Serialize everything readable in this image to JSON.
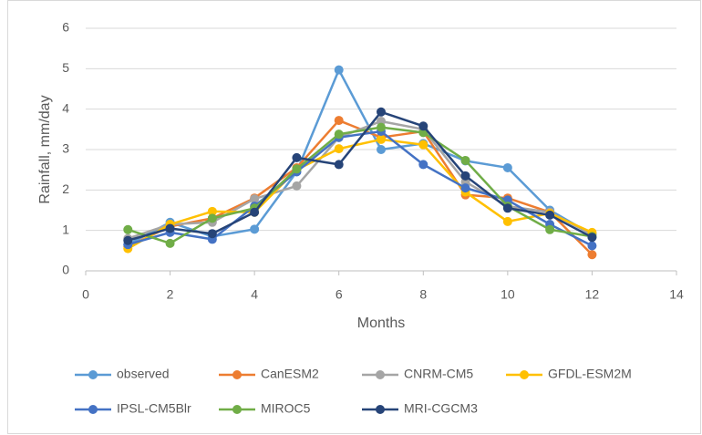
{
  "chart_data": {
    "type": "line",
    "x_label": "Months",
    "y_label": "Rainfall, mm/day",
    "x": [
      1,
      2,
      3,
      4,
      5,
      6,
      7,
      8,
      9,
      10,
      11,
      12
    ],
    "xlim": [
      0,
      14
    ],
    "xticks": [
      0,
      2,
      4,
      6,
      8,
      10,
      12,
      14
    ],
    "ylim": [
      0,
      6
    ],
    "yticks": [
      0,
      1,
      2,
      3,
      4,
      5,
      6
    ],
    "grid": true,
    "legend": "bottom",
    "series": [
      {
        "name": "observed",
        "color": "#5b9bd5",
        "values": [
          0.65,
          1.2,
          0.85,
          1.03,
          2.45,
          4.97,
          3.0,
          3.15,
          2.72,
          2.55,
          1.5,
          0.9
        ]
      },
      {
        "name": "CanESM2",
        "color": "#ed7d31",
        "values": [
          0.6,
          1.1,
          1.3,
          1.8,
          2.55,
          3.72,
          3.3,
          3.45,
          1.88,
          1.8,
          1.45,
          0.4
        ]
      },
      {
        "name": "CNRM-CM5",
        "color": "#a5a5a5",
        "values": [
          0.8,
          1.15,
          1.2,
          1.78,
          2.1,
          3.3,
          3.7,
          3.5,
          2.2,
          1.6,
          1.45,
          0.9
        ]
      },
      {
        "name": "GFDL-ESM2M",
        "color": "#ffc000",
        "values": [
          0.55,
          1.15,
          1.47,
          1.45,
          2.5,
          3.02,
          3.25,
          3.12,
          1.95,
          1.22,
          1.42,
          0.95
        ]
      },
      {
        "name": "IPSL-CM5Blr",
        "color": "#4472c4",
        "values": [
          0.65,
          0.95,
          0.78,
          1.6,
          2.45,
          3.3,
          3.45,
          2.63,
          2.05,
          1.75,
          1.15,
          0.62
        ]
      },
      {
        "name": "MIROC5",
        "color": "#70ad47",
        "values": [
          1.02,
          0.68,
          1.3,
          1.55,
          2.52,
          3.38,
          3.55,
          3.42,
          2.73,
          1.6,
          1.02,
          0.85
        ]
      },
      {
        "name": "MRI-CGCM3",
        "color": "#264478",
        "values": [
          0.75,
          1.05,
          0.92,
          1.45,
          2.8,
          2.63,
          3.93,
          3.58,
          2.35,
          1.55,
          1.38,
          0.83
        ]
      }
    ]
  }
}
